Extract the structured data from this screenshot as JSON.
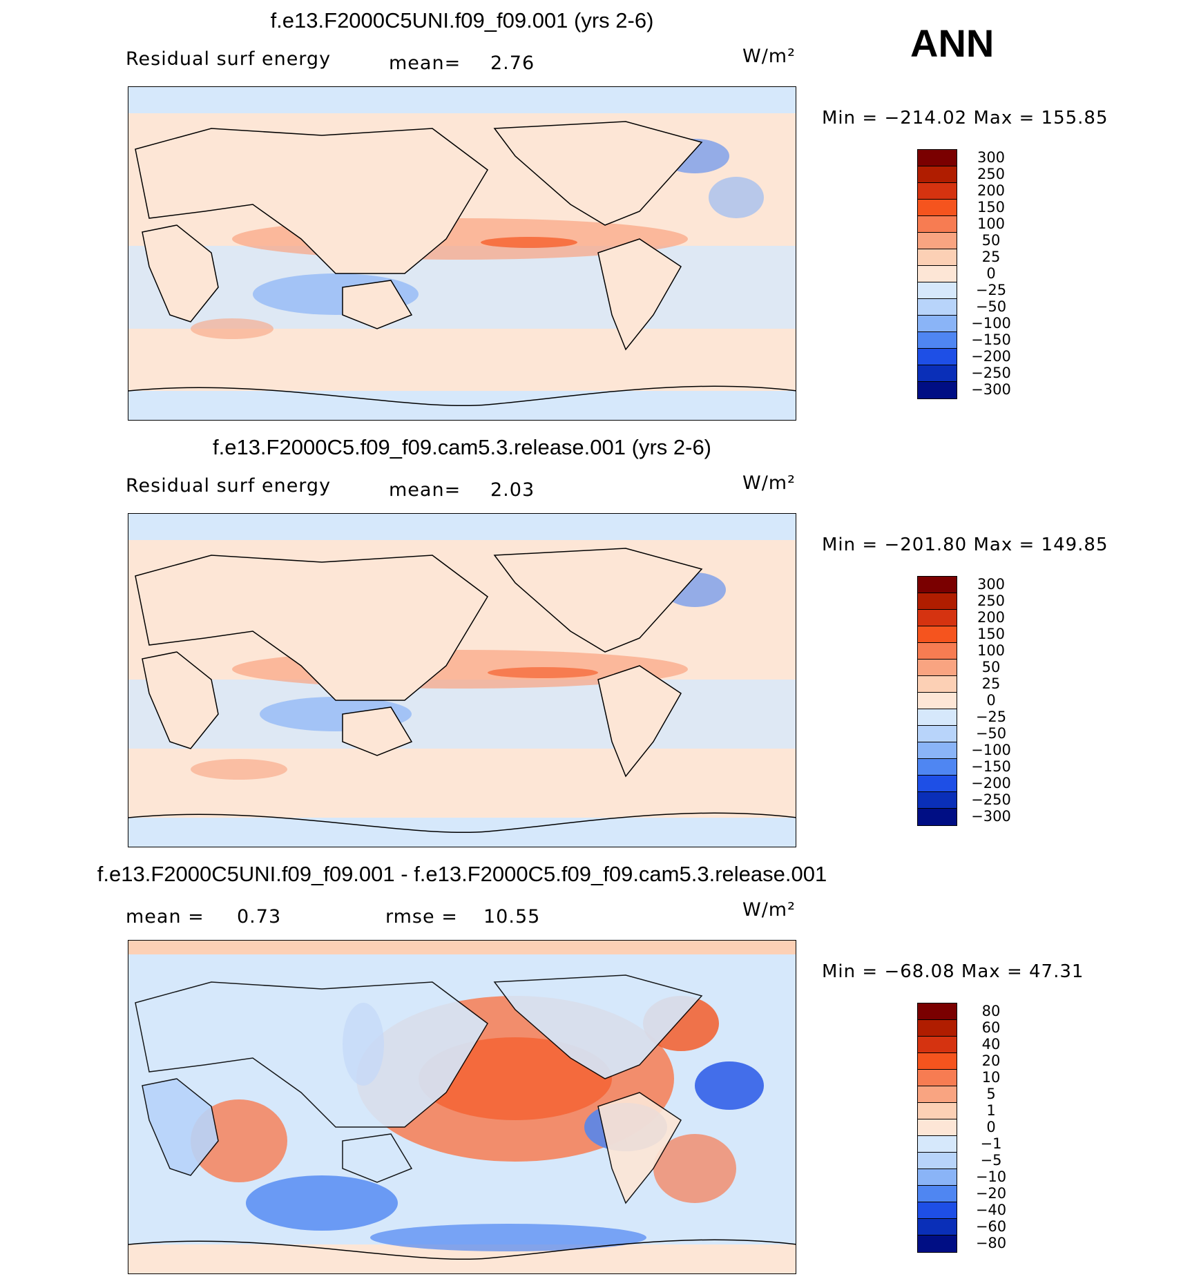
{
  "season": "ANN",
  "panels": [
    {
      "title": "f.e13.F2000C5UNI.f09_f09.001 (yrs 2-6)",
      "left_label": "Residual surf energy",
      "mean_label": "mean=",
      "mean_value": "2.76",
      "units": "W/m²",
      "minmax": "Min = −214.02 Max = 155.85",
      "colorbar": {
        "levels": [
          "300",
          "250",
          "200",
          "150",
          "100",
          "50",
          "25",
          "0",
          "−25",
          "−50",
          "−100",
          "−150",
          "−200",
          "−250",
          "−300"
        ],
        "colors": [
          "#7a0000",
          "#b01d00",
          "#d53310",
          "#f5541e",
          "#f77c52",
          "#f9a481",
          "#fcd0b5",
          "#fde6d6",
          "#d6e8fb",
          "#b8d4fa",
          "#8ab4f7",
          "#4f86f2",
          "#1e4fe6",
          "#0a2fb8",
          "#000e84"
        ]
      }
    },
    {
      "title": "f.e13.F2000C5.f09_f09.cam5.3.release.001 (yrs 2-6)",
      "left_label": "Residual surf energy",
      "mean_label": "mean=",
      "mean_value": "2.03",
      "units": "W/m²",
      "minmax": "Min = −201.80 Max = 149.85",
      "colorbar": {
        "levels": [
          "300",
          "250",
          "200",
          "150",
          "100",
          "50",
          "25",
          "0",
          "−25",
          "−50",
          "−100",
          "−150",
          "−200",
          "−250",
          "−300"
        ],
        "colors": [
          "#7a0000",
          "#b01d00",
          "#d53310",
          "#f5541e",
          "#f77c52",
          "#f9a481",
          "#fcd0b5",
          "#fde6d6",
          "#d6e8fb",
          "#b8d4fa",
          "#8ab4f7",
          "#4f86f2",
          "#1e4fe6",
          "#0a2fb8",
          "#000e84"
        ]
      }
    },
    {
      "title": "f.e13.F2000C5UNI.f09_f09.001 - f.e13.F2000C5.f09_f09.cam5.3.release.001",
      "mean_label": "mean =",
      "mean_value": "0.73",
      "rmse_label": "rmse =",
      "rmse_value": "10.55",
      "units": "W/m²",
      "minmax": "Min = −68.08 Max =  47.31",
      "colorbar": {
        "levels": [
          "80",
          "60",
          "40",
          "20",
          "10",
          "5",
          "1",
          "0",
          "−1",
          "−5",
          "−10",
          "−20",
          "−40",
          "−60",
          "−80"
        ],
        "colors": [
          "#7a0000",
          "#b01d00",
          "#d53310",
          "#f5541e",
          "#f77c52",
          "#f9a481",
          "#fcd0b5",
          "#fde6d6",
          "#d6e8fb",
          "#b8d4fa",
          "#8ab4f7",
          "#4f86f2",
          "#1e4fe6",
          "#0a2fb8",
          "#000e84"
        ]
      }
    }
  ]
}
